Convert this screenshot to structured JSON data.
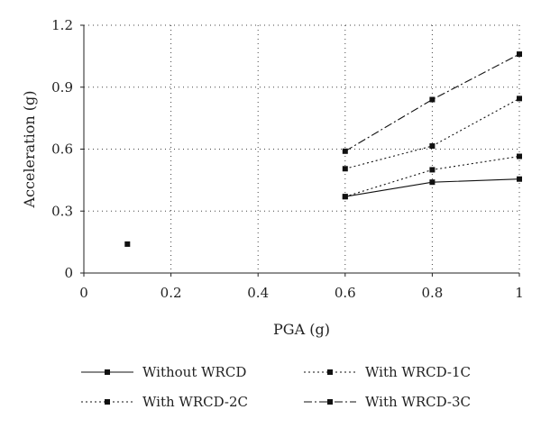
{
  "chart_data": {
    "type": "line",
    "title": "",
    "xlabel": "PGA (g)",
    "ylabel": "Acceleration (g)",
    "xlim": [
      0,
      1
    ],
    "ylim": [
      0,
      1.2
    ],
    "xticks": [
      0,
      0.2,
      0.4,
      0.6,
      0.8,
      1
    ],
    "xtick_labels": [
      "0",
      "0.2",
      "0.4",
      "0.6",
      "0.8",
      "1"
    ],
    "yticks": [
      0,
      0.3,
      0.6,
      0.9,
      1.2
    ],
    "ytick_labels": [
      "0",
      "0.3",
      "0.6",
      "0.9",
      "1.2"
    ],
    "grid": true,
    "legend_position": "bottom",
    "series": [
      {
        "name": "Without WRCD",
        "dash": "solid",
        "x": [
          0.6,
          0.8,
          1.0
        ],
        "y": [
          0.37,
          0.44,
          0.455
        ]
      },
      {
        "name": "With WRCD-1C",
        "dash": "dotted",
        "x": [
          0.6,
          0.8,
          1.0
        ],
        "y": [
          0.37,
          0.5,
          0.565
        ]
      },
      {
        "name": "With WRCD-2C",
        "dash": "dotted",
        "x": [
          0.6,
          0.8,
          1.0
        ],
        "y": [
          0.505,
          0.615,
          0.845
        ]
      },
      {
        "name": "With WRCD-3C",
        "dash": "dashdot",
        "x": [
          0.6,
          0.8,
          1.0
        ],
        "y": [
          0.59,
          0.84,
          1.06
        ]
      }
    ],
    "extra_points": [
      {
        "x": 0.1,
        "y": 0.14
      }
    ]
  }
}
